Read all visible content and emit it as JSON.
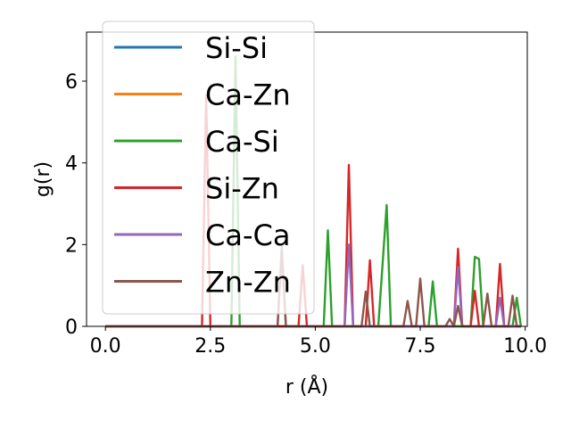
{
  "chart_data": {
    "type": "line",
    "xlabel": "r (Å)",
    "ylabel": "g(r)",
    "xlim": [
      -0.45,
      10.05
    ],
    "ylim": [
      0,
      7.2
    ],
    "xticks": [
      0.0,
      2.5,
      5.0,
      7.5,
      10.0
    ],
    "xtick_labels": [
      "0.0",
      "2.5",
      "5.0",
      "7.5",
      "10.0"
    ],
    "yticks": [
      0,
      2,
      4,
      6
    ],
    "ytick_labels": [
      "0",
      "2",
      "4",
      "6"
    ],
    "grid": false,
    "legend_position": "upper-left",
    "series": [
      {
        "name": "Si-Si",
        "color": "#1f77b4",
        "x": [
          0.0,
          9.9
        ],
        "y": [
          0,
          0
        ]
      },
      {
        "name": "Ca-Zn",
        "color": "#ff7f0e",
        "x": [
          0.0,
          9.9
        ],
        "y": [
          0,
          0
        ]
      },
      {
        "name": "Ca-Si",
        "color": "#2ca02c",
        "x": [
          0.0,
          3.0,
          3.1,
          3.2,
          5.2,
          5.3,
          5.4,
          6.5,
          6.7,
          6.8,
          7.7,
          7.8,
          7.9,
          8.7,
          8.8,
          8.9,
          9.0,
          9.1,
          9.7,
          9.8,
          9.9
        ],
        "y": [
          0,
          0,
          6.6,
          0,
          0,
          2.35,
          0,
          0,
          2.97,
          0,
          0,
          1.1,
          0,
          0,
          1.7,
          1.65,
          0,
          0,
          0,
          0.7,
          0
        ]
      },
      {
        "name": "Si-Zn",
        "color": "#d62728",
        "x": [
          0.0,
          2.3,
          2.4,
          2.5,
          4.6,
          4.7,
          4.8,
          5.7,
          5.8,
          5.9,
          6.2,
          6.3,
          6.4,
          8.3,
          8.4,
          8.5,
          8.7,
          8.8,
          8.9,
          9.3,
          9.4,
          9.5,
          9.9
        ],
        "y": [
          0,
          0,
          5.65,
          0,
          0,
          1.5,
          0,
          0,
          3.95,
          0,
          0,
          1.62,
          0,
          0,
          1.9,
          0,
          0,
          0.87,
          0,
          0,
          1.53,
          0,
          0
        ]
      },
      {
        "name": "Ca-Ca",
        "color": "#9467bd",
        "x": [
          0.0,
          4.1,
          4.2,
          4.3,
          5.7,
          5.8,
          5.9,
          8.3,
          8.4,
          8.5,
          9.3,
          9.4,
          9.5,
          9.9
        ],
        "y": [
          0,
          0,
          1.95,
          0,
          0,
          2.0,
          0,
          0,
          1.45,
          0,
          0,
          0.7,
          0,
          0
        ]
      },
      {
        "name": "Zn-Zn",
        "color": "#8c564b",
        "x": [
          0.0,
          4.1,
          4.2,
          4.3,
          6.1,
          6.2,
          6.3,
          7.1,
          7.2,
          7.3,
          7.4,
          7.5,
          7.6,
          8.1,
          8.2,
          8.3,
          8.4,
          8.5,
          9.0,
          9.1,
          9.2,
          9.6,
          9.7,
          9.8,
          9.9
        ],
        "y": [
          0,
          0,
          1.85,
          0,
          0,
          0.85,
          0,
          0,
          0.62,
          0,
          0,
          1.17,
          0,
          0,
          0.18,
          0,
          0.5,
          0,
          0,
          0.8,
          0,
          0,
          0.75,
          0,
          0
        ]
      }
    ]
  }
}
